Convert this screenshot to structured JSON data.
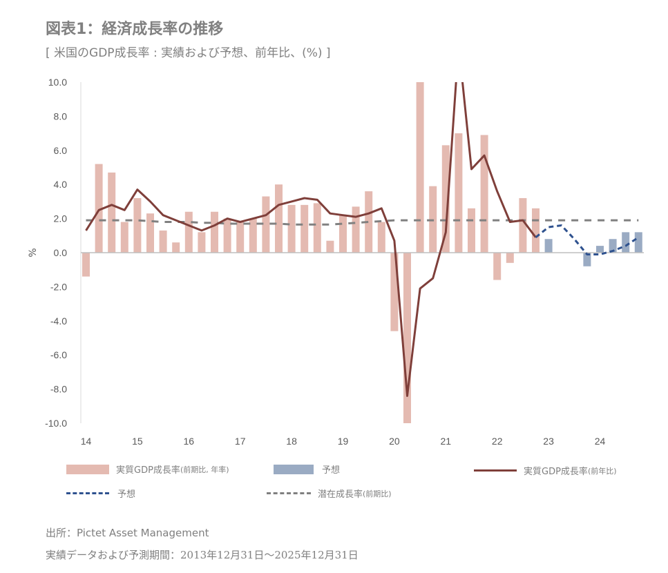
{
  "title": "図表1：経済成長率の推移",
  "subtitle": "[ 米国のGDP成長率 : 実績および予想、前年比、(%) ]",
  "chart_data": {
    "type": "bar",
    "ylabel": "%",
    "ylim": [
      -10,
      10
    ],
    "yticks": [
      "10.0",
      "8.0",
      "6.0",
      "4.0",
      "2.0",
      "0.0",
      "-2.0",
      "-4.0",
      "-6.0",
      "-8.0",
      "-10.0"
    ],
    "xticks": [
      "14",
      "15",
      "16",
      "17",
      "18",
      "19",
      "20",
      "21",
      "22",
      "23",
      "24"
    ],
    "quarters": [
      "2014Q1",
      "2014Q2",
      "2014Q3",
      "2014Q4",
      "2015Q1",
      "2015Q2",
      "2015Q3",
      "2015Q4",
      "2016Q1",
      "2016Q2",
      "2016Q3",
      "2016Q4",
      "2017Q1",
      "2017Q2",
      "2017Q3",
      "2017Q4",
      "2018Q1",
      "2018Q2",
      "2018Q3",
      "2018Q4",
      "2019Q1",
      "2019Q2",
      "2019Q3",
      "2019Q4",
      "2020Q1",
      "2020Q2",
      "2020Q3",
      "2020Q4",
      "2021Q1",
      "2021Q2",
      "2021Q3",
      "2021Q4",
      "2022Q1",
      "2022Q2",
      "2022Q3",
      "2022Q4",
      "2023Q1",
      "2023Q2",
      "2023Q3",
      "2023Q4",
      "2024Q1",
      "2024Q2",
      "2024Q3",
      "2024Q4"
    ],
    "series": [
      {
        "name": "実質GDP成長率",
        "name_note": "(前期比, 年率)",
        "type": "bar",
        "color": "#e4bab1",
        "values": [
          -1.4,
          5.2,
          4.7,
          1.8,
          3.2,
          2.3,
          1.3,
          0.6,
          2.4,
          1.2,
          2.4,
          2.0,
          1.8,
          2.0,
          3.3,
          4.0,
          2.8,
          2.8,
          2.9,
          0.7,
          2.2,
          2.7,
          3.6,
          1.8,
          -4.6,
          -10.1,
          10.0,
          3.9,
          6.3,
          7.0,
          2.6,
          6.9,
          -1.6,
          -0.6,
          3.2,
          2.6,
          null,
          null,
          null,
          null,
          null,
          null,
          null,
          null
        ]
      },
      {
        "name": "予想",
        "type": "bar",
        "color": "#9aabc3",
        "values": [
          null,
          null,
          null,
          null,
          null,
          null,
          null,
          null,
          null,
          null,
          null,
          null,
          null,
          null,
          null,
          null,
          null,
          null,
          null,
          null,
          null,
          null,
          null,
          null,
          null,
          null,
          null,
          null,
          null,
          null,
          null,
          null,
          null,
          null,
          null,
          null,
          0.8,
          null,
          null,
          -0.8,
          0.4,
          0.8,
          1.2,
          1.2
        ]
      },
      {
        "name": "実質GDP成長率",
        "name_note": "(前年比)",
        "type": "line",
        "color": "#7f3f3a",
        "values": [
          1.3,
          2.5,
          2.8,
          2.5,
          3.7,
          3.0,
          2.2,
          1.9,
          1.6,
          1.3,
          1.6,
          2.0,
          1.8,
          2.0,
          2.2,
          2.8,
          3.0,
          3.2,
          3.1,
          2.3,
          2.2,
          2.1,
          2.3,
          2.6,
          0.7,
          -8.4,
          -2.1,
          -1.5,
          1.2,
          12.2,
          4.9,
          5.7,
          3.6,
          1.8,
          1.9,
          0.9,
          null,
          null,
          null,
          null,
          null,
          null,
          null,
          null
        ]
      },
      {
        "name": "予想",
        "type": "dashed-line",
        "color": "#2f528f",
        "values": [
          null,
          null,
          null,
          null,
          null,
          null,
          null,
          null,
          null,
          null,
          null,
          null,
          null,
          null,
          null,
          null,
          null,
          null,
          null,
          null,
          null,
          null,
          null,
          null,
          null,
          null,
          null,
          null,
          null,
          null,
          null,
          null,
          null,
          null,
          null,
          0.9,
          1.5,
          1.6,
          0.8,
          -0.1,
          -0.1,
          0.1,
          0.4,
          0.9
        ]
      },
      {
        "name": "潜在成長率",
        "name_note": "(前期比)",
        "type": "dashed-line",
        "color": "#808080",
        "values": [
          1.9,
          1.9,
          1.9,
          1.9,
          1.9,
          1.85,
          1.8,
          1.8,
          1.8,
          1.75,
          1.75,
          1.7,
          1.7,
          1.7,
          1.7,
          1.7,
          1.65,
          1.65,
          1.65,
          1.65,
          1.7,
          1.75,
          1.8,
          1.85,
          1.9,
          1.9,
          1.9,
          1.9,
          1.9,
          1.9,
          1.9,
          1.9,
          1.9,
          1.9,
          1.9,
          1.9,
          1.9,
          1.9,
          1.9,
          1.9,
          1.9,
          1.9,
          1.9,
          1.9
        ]
      }
    ],
    "grid": false,
    "legend": "bottom"
  },
  "source": "出所：Pictet Asset Management",
  "period": "実績データおよび予測期間：2013年12月31日～2025年12月31日"
}
